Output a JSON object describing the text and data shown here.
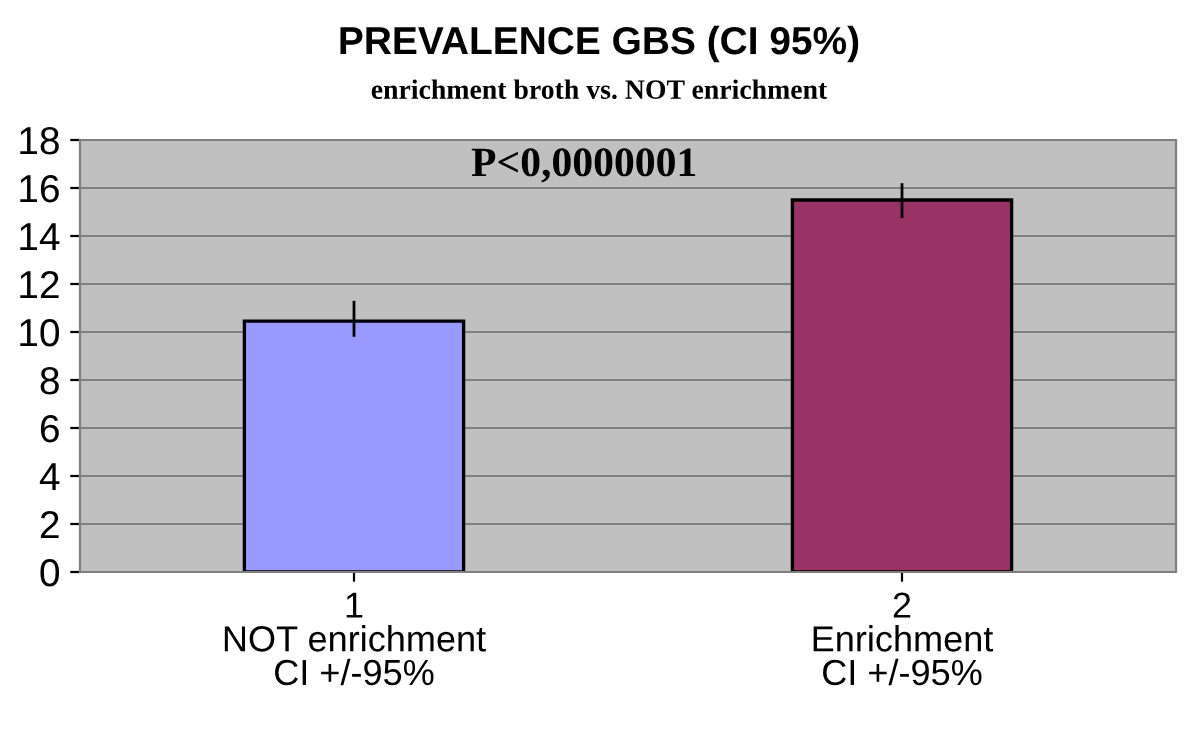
{
  "chart_data": {
    "type": "bar",
    "title": "PREVALENCE GBS (CI 95%)",
    "subtitle": "enrichment broth vs. NOT enrichment",
    "categories": [
      "1\nNOT enrichment\nCI +/-95%",
      "2\nEnrichment\nCI +/-95%"
    ],
    "values": [
      10.45,
      15.5
    ],
    "colors": [
      "#9999ff",
      "#993366"
    ],
    "errors": [
      [
        9.8,
        11.3
      ],
      [
        14.75,
        16.2
      ]
    ],
    "ylim": [
      0,
      18
    ],
    "yticks": [
      0,
      2,
      4,
      6,
      8,
      10,
      12,
      14,
      16,
      18
    ],
    "grid": "y",
    "annotations": [
      "P<0,0000001"
    ]
  }
}
